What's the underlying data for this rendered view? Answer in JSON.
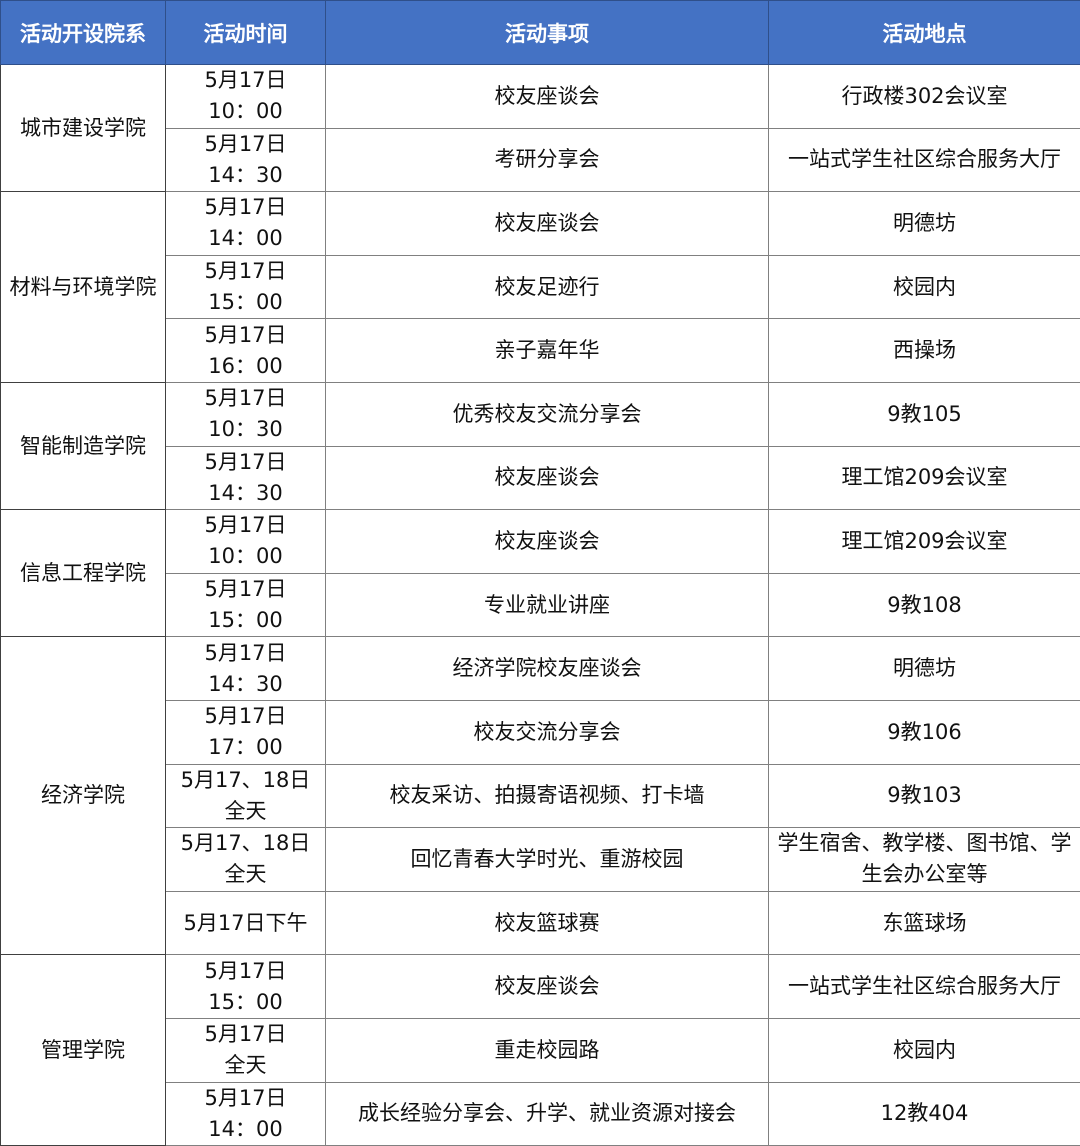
{
  "header": {
    "college": "活动开设院系",
    "time": "活动时间",
    "event": "活动事项",
    "location": "活动地点"
  },
  "colors": {
    "header_bg": "#4472C4",
    "header_text": "#FFFFFF"
  },
  "groups": [
    {
      "college": "城市建设学院",
      "rows": [
        {
          "time1": "5月17日",
          "time2": "10：00",
          "event": "校友座谈会",
          "location": "行政楼302会议室"
        },
        {
          "time1": "5月17日",
          "time2": "14：30",
          "event": "考研分享会",
          "location": "一站式学生社区综合服务大厅"
        }
      ]
    },
    {
      "college": "材料与环境学院",
      "rows": [
        {
          "time1": "5月17日",
          "time2": "14：00",
          "event": "校友座谈会",
          "location": "明德坊"
        },
        {
          "time1": "5月17日",
          "time2": "15：00",
          "event": "校友足迹行",
          "location": "校园内"
        },
        {
          "time1": "5月17日",
          "time2": "16：00",
          "event": "亲子嘉年华",
          "location": "西操场"
        }
      ]
    },
    {
      "college": "智能制造学院",
      "rows": [
        {
          "time1": "5月17日",
          "time2": "10：30",
          "event": "优秀校友交流分享会",
          "location": "9教105"
        },
        {
          "time1": "5月17日",
          "time2": "14：30",
          "event": "校友座谈会",
          "location": "理工馆209会议室"
        }
      ]
    },
    {
      "college": "信息工程学院",
      "rows": [
        {
          "time1": "5月17日",
          "time2": "10：00",
          "event": "校友座谈会",
          "location": "理工馆209会议室"
        },
        {
          "time1": "5月17日",
          "time2": "15：00",
          "event": "专业就业讲座",
          "location": "9教108"
        }
      ]
    },
    {
      "college": "经济学院",
      "rows": [
        {
          "time1": "5月17日",
          "time2": "14：30",
          "event": "经济学院校友座谈会",
          "location": "明德坊"
        },
        {
          "time1": "5月17日",
          "time2": "17：00",
          "event": "校友交流分享会",
          "location": "9教106"
        },
        {
          "time1": "5月17、18日",
          "time2": "全天",
          "event": "校友采访、拍摄寄语视频、打卡墙",
          "location": "9教103"
        },
        {
          "time1": "5月17、18日",
          "time2": "全天",
          "event": "回忆青春大学时光、重游校园",
          "location": "学生宿舍、教学楼、图书馆、学生会办公室等"
        },
        {
          "time1": "5月17日下午",
          "time2": "",
          "event": "校友篮球赛",
          "location": "东篮球场"
        }
      ]
    },
    {
      "college": "管理学院",
      "rows": [
        {
          "time1": "5月17日",
          "time2": "15：00",
          "event": "校友座谈会",
          "location": "一站式学生社区综合服务大厅"
        },
        {
          "time1": "5月17日",
          "time2": "全天",
          "event": "重走校园路",
          "location": "校园内"
        },
        {
          "time1": "5月17日",
          "time2": "14：00",
          "event": "成长经验分享会、升学、就业资源对接会",
          "location": "12教404"
        }
      ]
    }
  ]
}
